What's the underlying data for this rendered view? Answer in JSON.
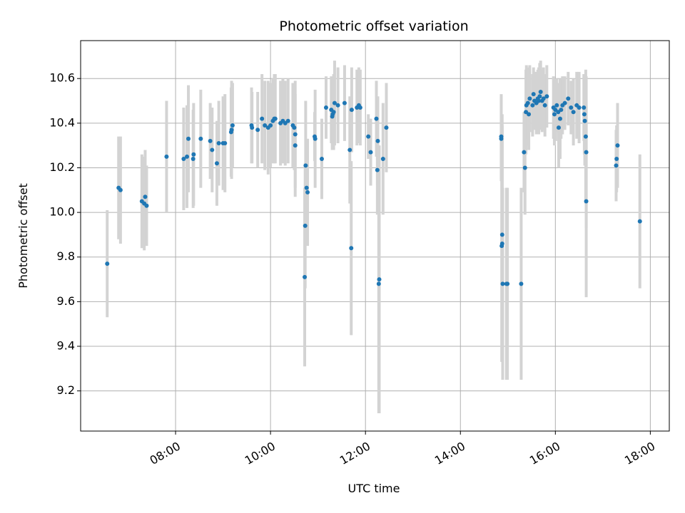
{
  "chart_data": {
    "type": "scatter",
    "title": "Photometric offset variation",
    "xlabel": "UTC time",
    "ylabel": "Photometric offset",
    "x_unit": "hour",
    "xlim": [
      6.0,
      18.4
    ],
    "ylim": [
      9.02,
      10.77
    ],
    "x_ticks": [
      {
        "value": 8,
        "label": "08:00"
      },
      {
        "value": 10,
        "label": "10:00"
      },
      {
        "value": 12,
        "label": "12:00"
      },
      {
        "value": 14,
        "label": "14:00"
      },
      {
        "value": 16,
        "label": "16:00"
      },
      {
        "value": 18,
        "label": "18:00"
      }
    ],
    "y_ticks": [
      {
        "value": 9.2,
        "label": "9.2"
      },
      {
        "value": 9.4,
        "label": "9.4"
      },
      {
        "value": 9.6,
        "label": "9.6"
      },
      {
        "value": 9.8,
        "label": "9.8"
      },
      {
        "value": 10.0,
        "label": "10.0"
      },
      {
        "value": 10.2,
        "label": "10.2"
      },
      {
        "value": 10.4,
        "label": "10.4"
      },
      {
        "value": 10.6,
        "label": "10.6"
      }
    ],
    "grid": true,
    "colors": {
      "points": "#1f77b4",
      "error_bars": "#d3d3d3"
    },
    "series": [
      {
        "x": [
          6.56,
          6.8,
          6.84,
          7.29,
          7.34,
          7.36,
          7.39,
          7.81,
          8.17,
          8.24,
          8.27,
          8.37,
          8.38,
          8.53,
          8.73,
          8.77,
          8.87,
          8.91,
          9.0,
          9.04,
          9.17,
          9.18,
          9.2,
          9.6,
          9.61,
          9.73,
          9.82,
          9.88,
          9.95,
          10.0,
          10.05,
          10.08,
          10.1,
          10.21,
          10.26,
          10.31,
          10.37,
          10.47,
          10.5,
          10.52,
          10.52,
          10.72,
          10.73,
          10.74,
          10.76,
          10.78,
          10.93,
          10.94,
          11.08,
          11.17,
          11.28,
          11.3,
          11.31,
          11.33,
          11.35,
          11.42,
          11.56,
          11.67,
          11.7,
          11.71,
          11.82,
          11.86,
          11.89,
          12.06,
          12.11,
          12.23,
          12.25,
          12.26,
          12.28,
          12.29,
          12.37,
          12.44,
          14.86,
          14.86,
          14.87,
          14.88,
          14.88,
          14.89,
          14.97,
          14.99,
          15.28,
          15.34,
          15.36,
          15.38,
          15.39,
          15.42,
          15.44,
          15.46,
          15.52,
          15.54,
          15.56,
          15.6,
          15.63,
          15.65,
          15.67,
          15.69,
          15.72,
          15.75,
          15.78,
          15.82,
          15.96,
          15.98,
          16.0,
          16.03,
          16.06,
          16.07,
          16.1,
          16.12,
          16.15,
          16.2,
          16.27,
          16.33,
          16.38,
          16.45,
          16.5,
          16.6,
          16.61,
          16.62,
          16.64,
          16.65,
          16.65,
          17.28,
          17.29,
          17.31,
          17.78
        ],
        "y": [
          9.77,
          10.11,
          10.1,
          10.05,
          10.04,
          10.07,
          10.03,
          10.25,
          10.24,
          10.25,
          10.33,
          10.24,
          10.26,
          10.33,
          10.32,
          10.28,
          10.22,
          10.31,
          10.31,
          10.31,
          10.36,
          10.37,
          10.39,
          10.39,
          10.38,
          10.37,
          10.42,
          10.39,
          10.38,
          10.39,
          10.41,
          10.42,
          10.42,
          10.4,
          10.41,
          10.4,
          10.41,
          10.39,
          10.38,
          10.3,
          10.35,
          9.71,
          9.94,
          10.21,
          10.11,
          10.09,
          10.34,
          10.33,
          10.24,
          10.47,
          10.46,
          10.43,
          10.44,
          10.45,
          10.49,
          10.48,
          10.49,
          10.28,
          9.84,
          10.46,
          10.47,
          10.48,
          10.47,
          10.34,
          10.27,
          10.42,
          10.19,
          10.32,
          9.68,
          9.7,
          10.24,
          10.38,
          10.33,
          10.34,
          9.85,
          9.86,
          9.9,
          9.68,
          9.68,
          9.68,
          9.68,
          10.27,
          10.2,
          10.45,
          10.48,
          10.49,
          10.44,
          10.51,
          10.48,
          10.53,
          10.5,
          10.49,
          10.51,
          10.5,
          10.52,
          10.54,
          10.5,
          10.51,
          10.48,
          10.52,
          10.47,
          10.44,
          10.46,
          10.48,
          10.45,
          10.38,
          10.42,
          10.46,
          10.48,
          10.49,
          10.51,
          10.47,
          10.45,
          10.48,
          10.47,
          10.47,
          10.44,
          10.41,
          10.34,
          10.27,
          10.05,
          10.21,
          10.24,
          10.3,
          9.96
        ],
        "err": [
          0.24,
          0.23,
          0.24,
          0.21,
          0.21,
          0.21,
          0.18,
          0.25,
          0.23,
          0.23,
          0.24,
          0.22,
          0.23,
          0.22,
          0.17,
          0.19,
          0.19,
          0.19,
          0.21,
          0.22,
          0.2,
          0.22,
          0.19,
          0.17,
          0.16,
          0.17,
          0.2,
          0.2,
          0.21,
          0.19,
          0.19,
          0.2,
          0.2,
          0.19,
          0.19,
          0.19,
          0.19,
          0.19,
          0.19,
          0.23,
          0.24,
          0.4,
          0.28,
          0.29,
          0.2,
          0.24,
          0.11,
          0.22,
          0.18,
          0.14,
          0.15,
          0.15,
          0.16,
          0.17,
          0.19,
          0.17,
          0.17,
          0.24,
          0.39,
          0.19,
          0.17,
          0.17,
          0.17,
          0.1,
          0.15,
          0.17,
          0.2,
          0.2,
          0.58,
          0.6,
          0.25,
          0.2,
          0.19,
          0.19,
          0.52,
          0.53,
          0.54,
          0.43,
          0.43,
          0.43,
          0.43,
          0.18,
          0.21,
          0.19,
          0.18,
          0.16,
          0.16,
          0.15,
          0.14,
          0.12,
          0.13,
          0.14,
          0.13,
          0.15,
          0.15,
          0.14,
          0.14,
          0.14,
          0.14,
          0.14,
          0.14,
          0.14,
          0.14,
          0.12,
          0.13,
          0.18,
          0.18,
          0.13,
          0.13,
          0.12,
          0.12,
          0.12,
          0.15,
          0.15,
          0.16,
          0.15,
          0.18,
          0.2,
          0.3,
          0.34,
          0.43,
          0.16,
          0.15,
          0.19,
          0.3
        ]
      }
    ]
  }
}
